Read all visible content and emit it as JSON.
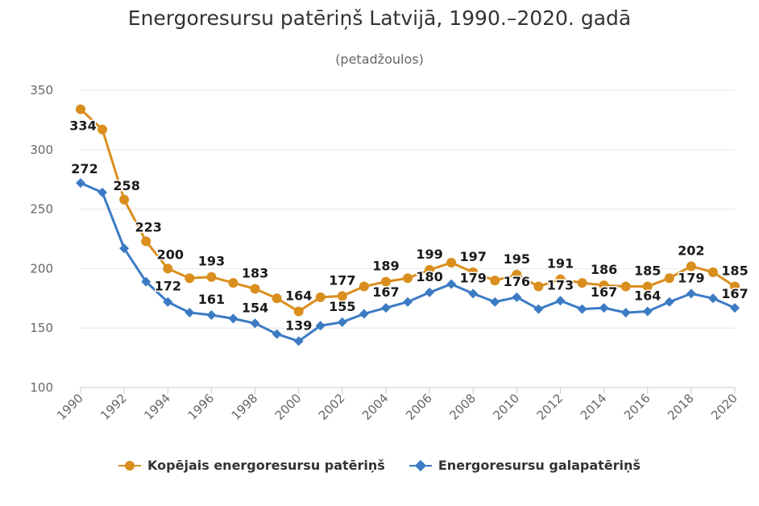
{
  "chart_data": {
    "type": "line",
    "title": "Energoresursu patēriņš Latvijā, 1990.–2020. gadā",
    "subtitle": "(petadžoulos)",
    "xlabel": "",
    "ylabel": "",
    "ylim": [
      100,
      350
    ],
    "yticks": [
      100,
      150,
      200,
      250,
      300,
      350
    ],
    "x": [
      1990,
      1991,
      1992,
      1993,
      1994,
      1995,
      1996,
      1997,
      1998,
      1999,
      2000,
      2001,
      2002,
      2003,
      2004,
      2005,
      2006,
      2007,
      2008,
      2009,
      2010,
      2011,
      2012,
      2013,
      2014,
      2015,
      2016,
      2017,
      2018,
      2019,
      2020
    ],
    "xticks": [
      "1990",
      "1992",
      "1994",
      "1996",
      "1998",
      "2000",
      "2002",
      "2004",
      "2006",
      "2008",
      "2010",
      "2012",
      "2014",
      "2016",
      "2018",
      "2020"
    ],
    "grid": "horizontal",
    "legend": "bottom",
    "series": [
      {
        "name": "Kopējais energoresursu patēriņš",
        "color": "#D98E1D",
        "marker": "circle",
        "values": [
          334,
          317,
          258,
          223,
          200,
          192,
          193,
          188,
          183,
          175,
          164,
          176,
          177,
          185,
          189,
          192,
          199,
          205,
          197,
          190,
          195,
          185,
          191,
          188,
          186,
          185,
          185,
          192,
          202,
          197,
          185
        ],
        "labels": {
          "1990": "334",
          "1992": "258",
          "1993": "223",
          "1994": "200",
          "1996": "193",
          "1998": "183",
          "2000": "164",
          "2002": "177",
          "2004": "189",
          "2006": "199",
          "2008": "197",
          "2010": "195",
          "2012": "191",
          "2014": "186",
          "2016": "185",
          "2018": "202",
          "2020": "185"
        }
      },
      {
        "name": "Energoresursu galapatēriņš",
        "color": "#3C7BC4",
        "marker": "diamond",
        "values": [
          272,
          264,
          217,
          189,
          172,
          163,
          161,
          158,
          154,
          145,
          139,
          152,
          155,
          162,
          167,
          172,
          180,
          187,
          179,
          172,
          176,
          166,
          173,
          166,
          167,
          163,
          164,
          172,
          179,
          175,
          167
        ],
        "labels": {
          "1990": "272",
          "1994": "172",
          "1996": "161",
          "1998": "154",
          "2000": "139",
          "2002": "155",
          "2004": "167",
          "2006": "180",
          "2008": "179",
          "2010": "176",
          "2012": "173",
          "2014": "167",
          "2016": "164",
          "2018": "179",
          "2020": "167"
        }
      }
    ]
  }
}
